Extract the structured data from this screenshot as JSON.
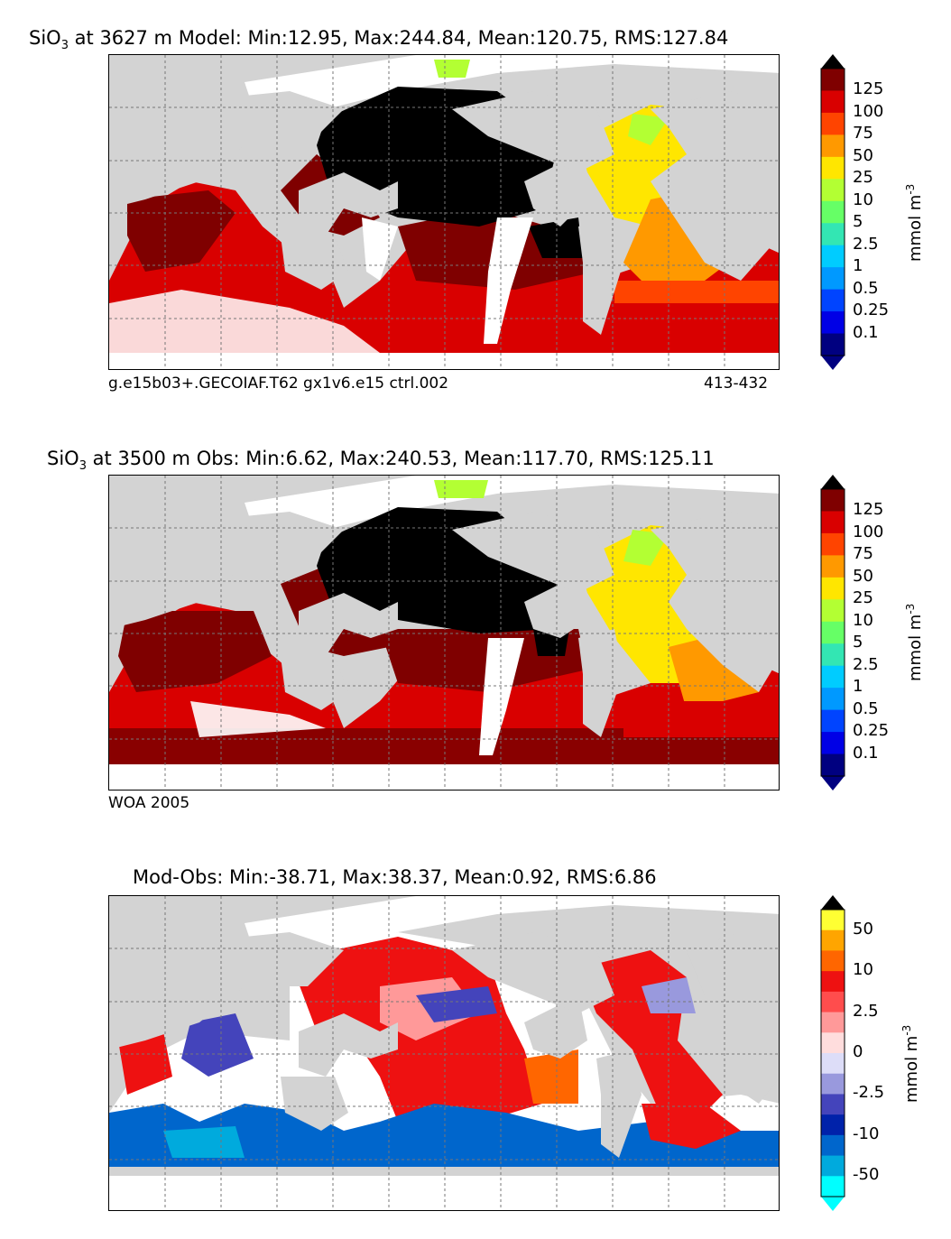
{
  "panels": [
    {
      "title_pre": "SiO",
      "title_sub": "3",
      "title_post": " at 3627 m Model: Min:12.95, Max:244.84, Mean:120.75, RMS:127.84",
      "caption_left": "g.e15b03+.GECOIAF.T62 gx1v6.e15 ctrl.002",
      "caption_right": "413-432",
      "colorbar": {
        "labels": [
          "125",
          "100",
          "75",
          "50",
          "25",
          "10",
          "5",
          "2.5",
          "1",
          "0.5",
          "0.25",
          "0.1"
        ],
        "unit": "mmol m",
        "unit_sup": "-3",
        "colors": [
          "#7f0000",
          "#d90000",
          "#ff4400",
          "#ff9900",
          "#ffe600",
          "#b3ff33",
          "#66ff66",
          "#33e6b3",
          "#00ccff",
          "#0099ff",
          "#0044ff",
          "#0000e6",
          "#000080"
        ]
      }
    },
    {
      "title_pre": "SiO",
      "title_sub": "3",
      "title_post": " at 3500 m Obs: Min:6.62, Max:240.53, Mean:117.70, RMS:125.11",
      "caption_left": "WOA 2005",
      "colorbar": {
        "labels": [
          "125",
          "100",
          "75",
          "50",
          "25",
          "10",
          "5",
          "2.5",
          "1",
          "0.5",
          "0.25",
          "0.1"
        ],
        "unit": "mmol m",
        "unit_sup": "-3",
        "colors": [
          "#7f0000",
          "#d90000",
          "#ff4400",
          "#ff9900",
          "#ffe600",
          "#b3ff33",
          "#66ff66",
          "#33e6b3",
          "#00ccff",
          "#0099ff",
          "#0044ff",
          "#0000e6",
          "#000080"
        ]
      }
    },
    {
      "title": "Mod-Obs: Min:-38.71, Max:38.37, Mean:0.92, RMS:6.86",
      "colorbar": {
        "labels": [
          "50",
          "10",
          "2.5",
          "0",
          "-2.5",
          "-10",
          "-50"
        ],
        "unit": "mmol m",
        "unit_sup": "-3",
        "colors": [
          "#ffff33",
          "#ffa500",
          "#ff6600",
          "#ee1111",
          "#ff4d4d",
          "#ff9999",
          "#ffdddd",
          "#ddddf8",
          "#9999dd",
          "#4444bb",
          "#0022aa",
          "#0066cc",
          "#00aadd",
          "#00ffff"
        ]
      }
    }
  ],
  "map_colors": {
    "land": "#d3d3d3",
    "nodata": "#ffffff",
    "black_region": "#000000",
    "dark_red": "#7f0000",
    "red": "#d90000",
    "orange": "#ff9900",
    "yellow": "#ffe600",
    "green": "#b3ff33",
    "blue": "#0066cc",
    "cyan": "#00aadd",
    "light_blue": "#9999dd"
  }
}
